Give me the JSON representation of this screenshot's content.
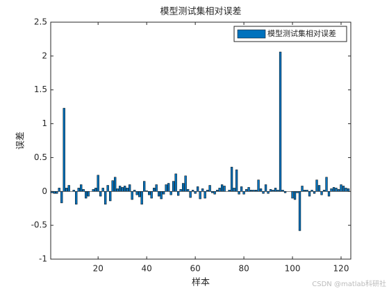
{
  "chart_data": {
    "type": "bar",
    "title": "模型测试集相对误差",
    "xlabel": "样本",
    "ylabel": "误差",
    "legend": "top-right",
    "watermark": "CSDN @matlab科研社",
    "x": [
      1,
      2,
      3,
      4,
      5,
      6,
      7,
      8,
      9,
      10,
      11,
      12,
      13,
      14,
      15,
      16,
      17,
      18,
      19,
      20,
      21,
      22,
      23,
      24,
      25,
      26,
      27,
      28,
      29,
      30,
      31,
      32,
      33,
      34,
      35,
      36,
      37,
      38,
      39,
      40,
      41,
      42,
      43,
      44,
      45,
      46,
      47,
      48,
      49,
      50,
      51,
      52,
      53,
      54,
      55,
      56,
      57,
      58,
      59,
      60,
      61,
      62,
      63,
      64,
      65,
      66,
      67,
      68,
      69,
      70,
      71,
      72,
      73,
      74,
      75,
      76,
      77,
      78,
      79,
      80,
      81,
      82,
      83,
      84,
      85,
      86,
      87,
      88,
      89,
      90,
      91,
      92,
      93,
      94,
      95,
      96,
      97,
      98,
      99,
      100,
      101,
      102,
      103,
      104,
      105,
      106,
      107,
      108,
      109,
      110,
      111,
      112,
      113,
      114,
      115,
      116,
      117,
      118,
      119,
      120,
      121,
      122,
      123
    ],
    "series": [
      {
        "name": "模型测试集相对误差",
        "color": "#0072bd",
        "values": [
          -0.02,
          -0.03,
          -0.03,
          0.05,
          -0.17,
          1.23,
          0.05,
          0.09,
          0,
          0.02,
          -0.19,
          0.05,
          0.1,
          0.03,
          -0.1,
          -0.07,
          0,
          0.03,
          0.05,
          0.24,
          -0.07,
          0.05,
          -0.19,
          0.09,
          -0.14,
          0.16,
          0.21,
          0.04,
          0.08,
          0.06,
          0.08,
          0.05,
          0.1,
          -0.12,
          0.02,
          -0.05,
          -0.08,
          -0.19,
          0.15,
          0.01,
          -0.05,
          -0.1,
          0.05,
          0.1,
          -0.07,
          -0.11,
          -0.04,
          0.1,
          0.12,
          -0.05,
          0.15,
          0.26,
          -0.06,
          0.03,
          0.12,
          0.23,
          0.03,
          -0.09,
          0.02,
          -0.03,
          0.07,
          -0.11,
          0.04,
          -0.1,
          0.02,
          0.09,
          -0.02,
          -0.04,
          0.02,
          0.05,
          0.1,
          0.08,
          0,
          0.02,
          0.36,
          0.05,
          0.32,
          -0.04,
          0.07,
          -0.04,
          0.03,
          0.06,
          0.02,
          0.02,
          0.02,
          0.17,
          0.04,
          -0.03,
          0.1,
          -0.03,
          0.03,
          0.02,
          0.05,
          0.02,
          2.06,
          0.02,
          -0.02,
          0,
          0,
          -0.1,
          -0.12,
          -0.02,
          -0.58,
          0.08,
          0.02,
          0.02,
          -0.07,
          0.02,
          -0.03,
          0.17,
          0.09,
          -0.05,
          0.02,
          0.21,
          -0.07,
          0.04,
          0.06,
          0.05,
          0.03,
          0.1,
          0.08,
          0.05,
          0.04
        ]
      }
    ],
    "xlim": [
      0.5,
      124
    ],
    "xticks": [
      20,
      40,
      60,
      80,
      100,
      120
    ],
    "ylim": [
      -1,
      2.5
    ],
    "yticks": [
      -1,
      -0.5,
      0,
      0.5,
      1,
      1.5,
      2,
      2.5
    ]
  }
}
